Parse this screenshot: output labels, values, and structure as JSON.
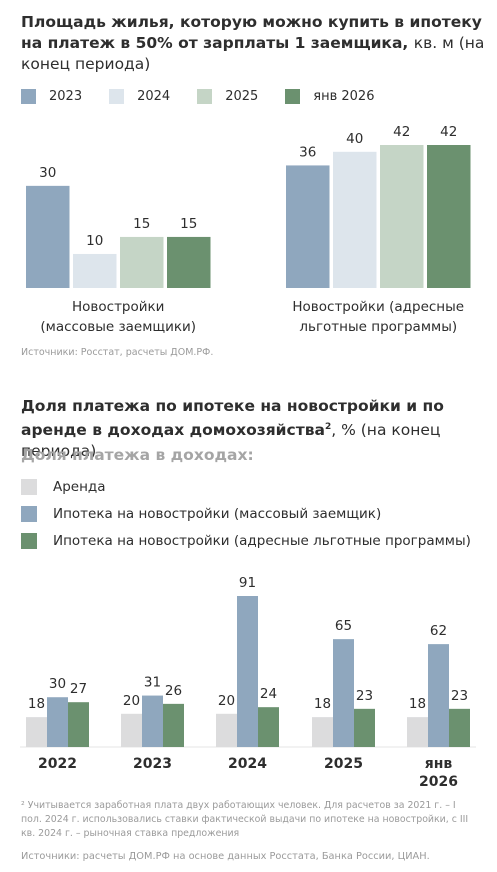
{
  "chart1": {
    "title_bold": "Площадь жилья, которую можно купить в ипотеку на платеж в 50% от зарплаты 1 заемщика,",
    "title_light": "кв. м (на конец периода)",
    "source": "Источники: Росстат, расчеты ДОМ.РФ."
  },
  "chart2": {
    "title_bold": "Доля платежа по ипотеке на новостройки и по аренде в доходах домохозяйства",
    "title_sup": "2",
    "title_light": ", % (на конец периода)",
    "subhead": "Доля платежа в доходах:",
    "footnote": "² Учитывается заработная плата двух работающих человек. Для расчетов за 2021 г. – I пол. 2024 г. использовались ставки фактической выдачи по ипотеке на новостройки, с III кв. 2024 г. – рыночная ставка предложения",
    "source": "Источники: расчеты ДОМ.РФ на основе данных Росстата, Банка России, ЦИАН."
  },
  "chart_data": [
    {
      "type": "bar",
      "title": "Площадь жилья, которую можно купить в ипотеку на платеж в 50% от зарплаты 1 заемщика, кв. м (на конец периода)",
      "categories": [
        "Новостройки (массовые заемщики)",
        "Новостройки (адресные льготные программы)"
      ],
      "category_lines": [
        [
          "Новостройки",
          "(массовые заемщики)"
        ],
        [
          "Новостройки (адресные",
          "льготные программы)"
        ]
      ],
      "series": [
        {
          "name": "2023",
          "values": [
            30,
            36
          ],
          "color": "#8fa7be"
        },
        {
          "name": "2024",
          "values": [
            10,
            40
          ],
          "color": "#dde5ec"
        },
        {
          "name": "2025",
          "values": [
            15,
            42
          ],
          "color": "#c5d5c6"
        },
        {
          "name": "янв 2026",
          "values": [
            15,
            42
          ],
          "color": "#6b916f"
        }
      ],
      "ylim": [
        0,
        42
      ],
      "legend": "top",
      "grid": false
    },
    {
      "type": "bar",
      "title": "Доля платежа по ипотеке на новостройки и по аренде в доходах домохозяйства, % (на конец периода)",
      "categories": [
        "2022",
        "2023",
        "2024",
        "2025",
        "янв 2026"
      ],
      "category_lines": [
        [
          "2022"
        ],
        [
          "2023"
        ],
        [
          "2024"
        ],
        [
          "2025"
        ],
        [
          "янв",
          "2026"
        ]
      ],
      "series": [
        {
          "name": "Аренда",
          "values": [
            18,
            20,
            20,
            18,
            18
          ],
          "color": "#dcdcdd"
        },
        {
          "name": "Ипотека на новостройки (массовый заемщик)",
          "values": [
            30,
            31,
            91,
            65,
            62
          ],
          "color": "#8fa7be"
        },
        {
          "name": "Ипотека на новостройки (адресные льготные программы)",
          "values": [
            27,
            26,
            24,
            23,
            23
          ],
          "color": "#6b916f"
        }
      ],
      "ylim": [
        0,
        91
      ],
      "legend": "top",
      "grid": false
    }
  ]
}
